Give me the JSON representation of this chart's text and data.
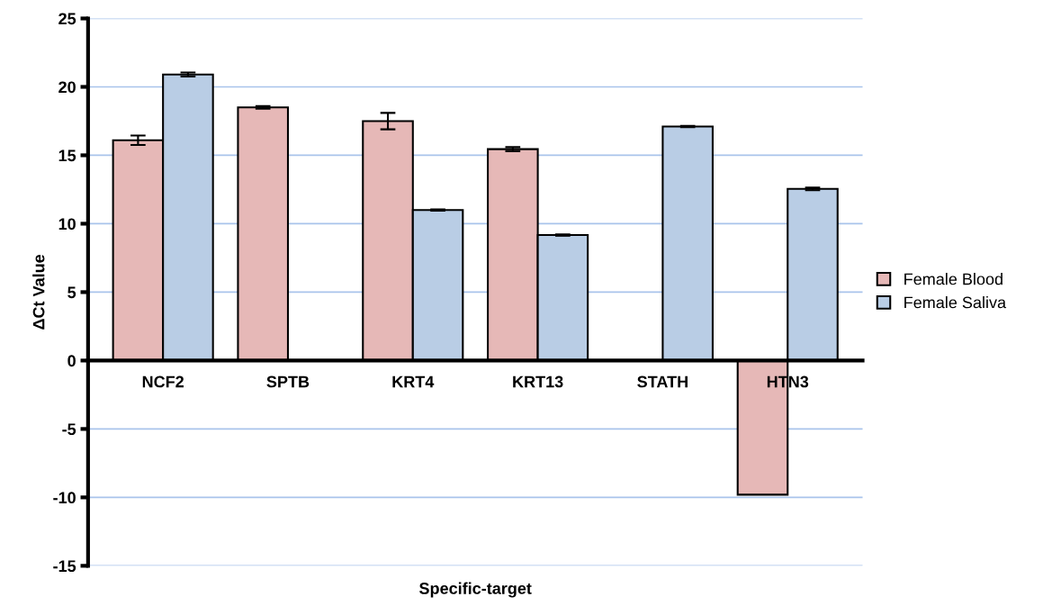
{
  "chart_data": {
    "type": "bar",
    "xlabel": "Specific-target",
    "ylabel": "ΔCt Value",
    "categories": [
      "NCF2",
      "SPTB",
      "KRT4",
      "KRT13",
      "STATH",
      "HTN3"
    ],
    "series": [
      {
        "name": "Female Blood",
        "color": "#e6b8b7",
        "values": [
          16.1,
          18.5,
          17.5,
          15.45,
          null,
          -9.8
        ],
        "errors": [
          0.35,
          0.1,
          0.6,
          0.15,
          null,
          null
        ]
      },
      {
        "name": "Female Saliva",
        "color": "#b9cde5",
        "values": [
          20.9,
          null,
          11.0,
          9.17,
          17.1,
          12.55
        ],
        "errors": [
          0.15,
          null,
          0.05,
          0.05,
          0.05,
          0.1
        ]
      }
    ],
    "ylim": [
      -15,
      25
    ],
    "yticks": [
      -15,
      -10,
      -5,
      0,
      5,
      10,
      15,
      20,
      25
    ],
    "grid": "y",
    "legend": "right"
  }
}
